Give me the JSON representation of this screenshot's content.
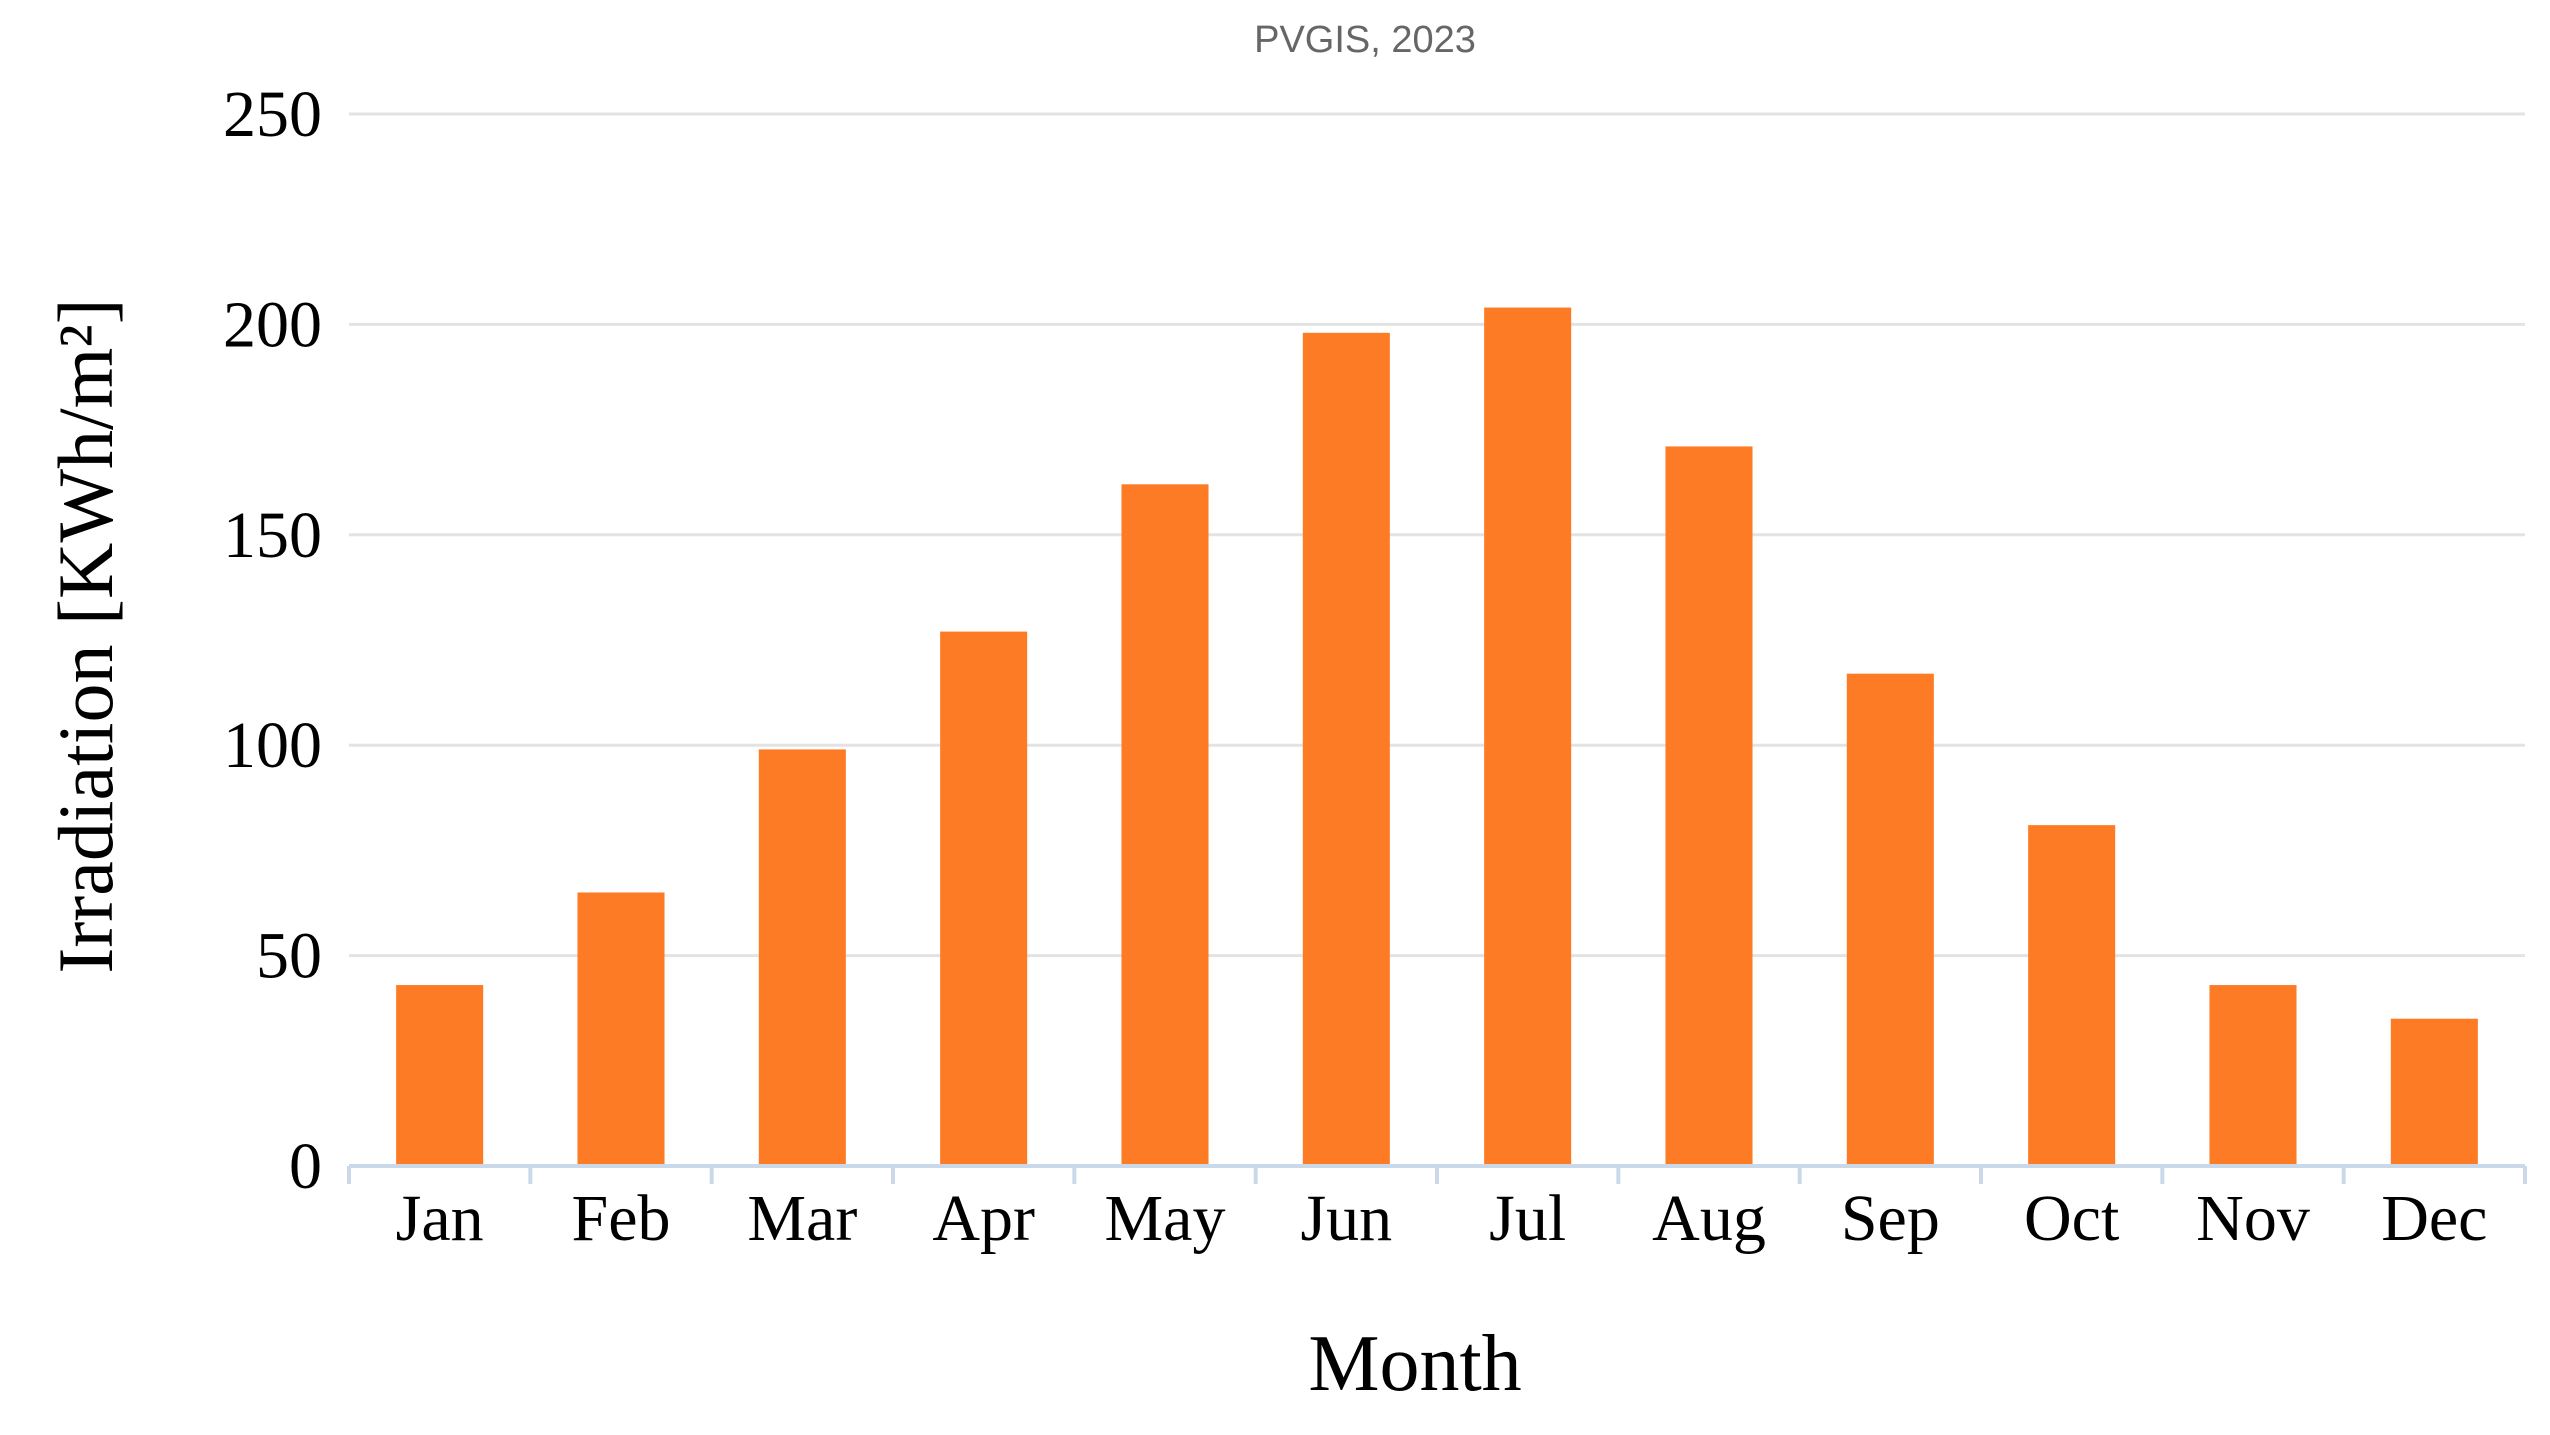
{
  "chart_data": {
    "type": "bar",
    "title": "PVGIS, 2023",
    "x_label": "Month",
    "y_label": "Irradiation [KWh/m²]",
    "categories": [
      "Jan",
      "Feb",
      "Mar",
      "Apr",
      "May",
      "Jun",
      "Jul",
      "Aug",
      "Sep",
      "Oct",
      "Nov",
      "Dec"
    ],
    "values": [
      43,
      65,
      99,
      127,
      162,
      198,
      204,
      171,
      117,
      81,
      43,
      35
    ],
    "color": "#fd7b24",
    "ylim": [
      0,
      250
    ],
    "yticks": [
      0,
      50,
      100,
      150,
      200,
      250
    ],
    "grid": true
  }
}
